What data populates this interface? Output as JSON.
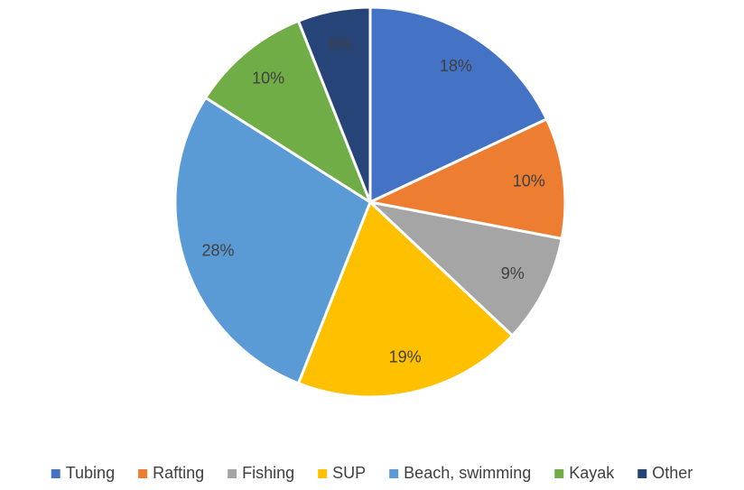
{
  "chart_data": {
    "type": "pie",
    "categories": [
      "Tubing",
      "Rafting",
      "Fishing",
      "SUP",
      "Beach, swimming",
      "Kayak",
      "Other"
    ],
    "values": [
      18,
      10,
      9,
      19,
      28,
      10,
      6
    ],
    "value_labels": [
      "18%",
      "10%",
      "9%",
      "19%",
      "28%",
      "10%",
      "6%"
    ],
    "colors": [
      "#4472c4",
      "#ed7d31",
      "#a5a5a5",
      "#ffc000",
      "#5b9bd5",
      "#70ad47",
      "#264478"
    ],
    "legend": "bottom"
  }
}
